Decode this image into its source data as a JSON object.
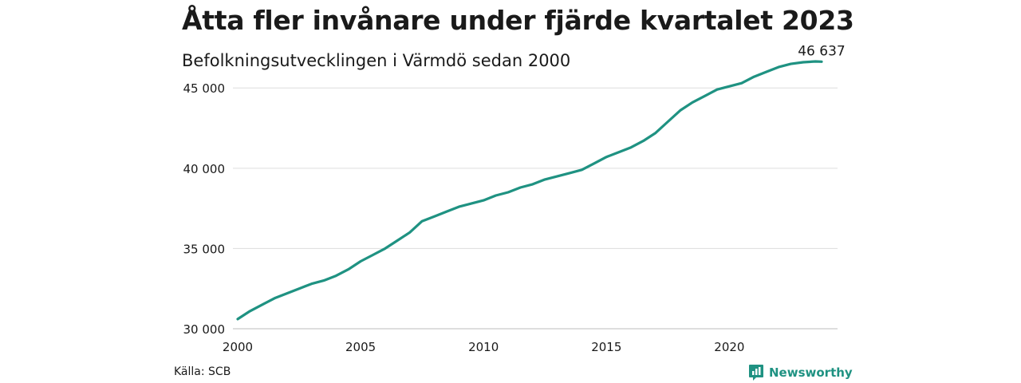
{
  "header": {
    "title": "Åtta fler invånare under fjärde kvartalet 2023",
    "subtitle": "Befolkningsutvecklingen i Värmdö sedan 2000"
  },
  "footer": {
    "source": "Källa: SCB",
    "brand": "Newsworthy",
    "brand_color": "#1f9282"
  },
  "chart_data": {
    "type": "line",
    "title": "Åtta fler invånare under fjärde kvartalet 2023",
    "subtitle": "Befolkningsutvecklingen i Värmdö sedan 2000",
    "xlabel": "",
    "ylabel": "",
    "xlim": [
      2000,
      2024
    ],
    "ylim": [
      30000,
      47000
    ],
    "x_ticks": [
      {
        "value": 2000,
        "label": "2000"
      },
      {
        "value": 2005,
        "label": "2005"
      },
      {
        "value": 2010,
        "label": "2010"
      },
      {
        "value": 2015,
        "label": "2015"
      },
      {
        "value": 2020,
        "label": "2020"
      }
    ],
    "y_ticks": [
      {
        "value": 30000,
        "label": "30 000"
      },
      {
        "value": 35000,
        "label": "35 000"
      },
      {
        "value": 40000,
        "label": "40 000"
      },
      {
        "value": 45000,
        "label": "45 000"
      }
    ],
    "grid": true,
    "line_color": "#1f9282",
    "end_label": "46 637",
    "series": [
      {
        "x": [
          2000.0,
          2000.5,
          2001.0,
          2001.5,
          2002.0,
          2002.5,
          2003.0,
          2003.5,
          2004.0,
          2004.5,
          2005.0,
          2005.5,
          2006.0,
          2006.5,
          2007.0,
          2007.5,
          2008.0,
          2008.5,
          2009.0,
          2009.5,
          2010.0,
          2010.5,
          2011.0,
          2011.5,
          2012.0,
          2012.5,
          2013.0,
          2013.5,
          2014.0,
          2014.5,
          2015.0,
          2015.5,
          2016.0,
          2016.5,
          2017.0,
          2017.5,
          2018.0,
          2018.5,
          2019.0,
          2019.5,
          2020.0,
          2020.5,
          2021.0,
          2021.5,
          2022.0,
          2022.5,
          2023.0,
          2023.5,
          2023.75
        ],
        "values": [
          30600,
          31100,
          31500,
          31900,
          32200,
          32500,
          32800,
          33000,
          33300,
          33700,
          34200,
          34600,
          35000,
          35500,
          36000,
          36700,
          37000,
          37300,
          37600,
          37800,
          38000,
          38300,
          38500,
          38800,
          39000,
          39300,
          39500,
          39700,
          39900,
          40300,
          40700,
          41000,
          41300,
          41700,
          42200,
          42900,
          43600,
          44100,
          44500,
          44900,
          45100,
          45300,
          45700,
          46000,
          46300,
          46500,
          46600,
          46650,
          46637
        ]
      }
    ]
  }
}
